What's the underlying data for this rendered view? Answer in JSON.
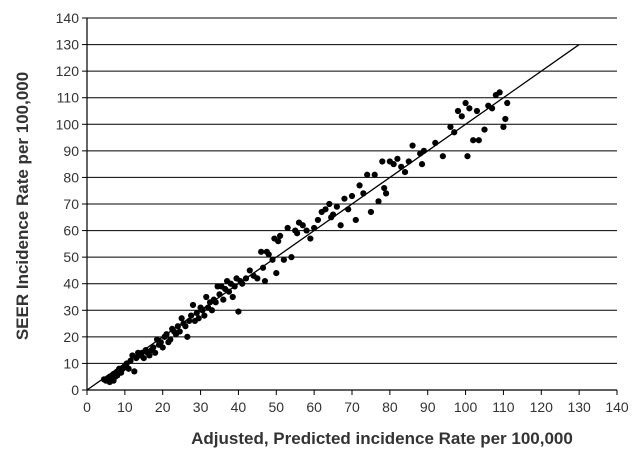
{
  "chart_data": {
    "type": "scatter",
    "title": "",
    "xlabel": "Adjusted, Predicted incidence Rate per 100,000",
    "ylabel": "SEER Incidence Rate per 100,000",
    "xlim": [
      0,
      140
    ],
    "ylim": [
      0,
      140
    ],
    "x_ticks": [
      "0",
      "10",
      "20",
      "30",
      "40",
      "50",
      "60",
      "70",
      "80",
      "90",
      "100",
      "110",
      "120",
      "130",
      "140"
    ],
    "y_ticks": [
      "0",
      "10",
      "20",
      "30",
      "40",
      "50",
      "60",
      "70",
      "80",
      "90",
      "100",
      "110",
      "120",
      "130",
      "140"
    ],
    "grid": "horizontal",
    "reference_line": {
      "x": [
        0,
        130
      ],
      "y": [
        0,
        130
      ]
    },
    "points": [
      [
        4.5,
        4
      ],
      [
        5,
        3.5
      ],
      [
        5.5,
        4.5
      ],
      [
        6,
        3
      ],
      [
        6,
        5
      ],
      [
        6.5,
        4
      ],
      [
        7,
        6
      ],
      [
        7,
        3.5
      ],
      [
        7.5,
        5
      ],
      [
        8,
        7
      ],
      [
        8,
        5.5
      ],
      [
        8.5,
        8
      ],
      [
        9,
        6.5
      ],
      [
        9.5,
        8
      ],
      [
        10,
        9
      ],
      [
        10.5,
        10
      ],
      [
        11,
        8
      ],
      [
        11.5,
        11
      ],
      [
        12,
        13
      ],
      [
        12.5,
        7
      ],
      [
        13,
        12
      ],
      [
        13.5,
        14
      ],
      [
        14,
        13
      ],
      [
        14.5,
        14
      ],
      [
        15,
        12
      ],
      [
        15.5,
        15
      ],
      [
        16,
        14
      ],
      [
        16.5,
        13
      ],
      [
        17,
        15
      ],
      [
        17.5,
        16
      ],
      [
        18,
        14
      ],
      [
        18.5,
        19
      ],
      [
        19,
        17
      ],
      [
        19.5,
        18
      ],
      [
        20,
        16
      ],
      [
        20.5,
        20
      ],
      [
        21,
        21
      ],
      [
        21.5,
        18
      ],
      [
        22,
        19
      ],
      [
        22.5,
        23
      ],
      [
        23,
        22
      ],
      [
        23.5,
        21
      ],
      [
        24,
        24
      ],
      [
        24.5,
        22
      ],
      [
        25,
        27
      ],
      [
        25.5,
        25
      ],
      [
        26,
        24
      ],
      [
        26.5,
        20
      ],
      [
        27,
        26
      ],
      [
        27.5,
        28
      ],
      [
        28,
        32
      ],
      [
        28.5,
        26
      ],
      [
        29,
        29
      ],
      [
        29.5,
        27
      ],
      [
        30,
        31
      ],
      [
        30.5,
        30
      ],
      [
        31,
        28
      ],
      [
        31.5,
        35
      ],
      [
        32,
        31
      ],
      [
        32.5,
        33
      ],
      [
        33,
        30
      ],
      [
        33.5,
        34
      ],
      [
        34,
        33
      ],
      [
        34.5,
        39
      ],
      [
        35,
        36
      ],
      [
        35.5,
        39
      ],
      [
        36,
        34
      ],
      [
        36.5,
        38
      ],
      [
        37,
        41
      ],
      [
        37.5,
        37
      ],
      [
        38,
        40
      ],
      [
        38.5,
        35
      ],
      [
        39,
        39
      ],
      [
        39.5,
        42
      ],
      [
        40,
        29.5
      ],
      [
        40.5,
        41
      ],
      [
        41,
        40
      ],
      [
        42,
        42
      ],
      [
        43,
        45
      ],
      [
        44,
        43
      ],
      [
        45,
        42
      ],
      [
        46,
        52
      ],
      [
        46.5,
        46
      ],
      [
        47,
        41
      ],
      [
        47.5,
        52
      ],
      [
        48,
        51
      ],
      [
        49,
        49
      ],
      [
        49.5,
        57
      ],
      [
        50,
        44
      ],
      [
        50.5,
        56
      ],
      [
        51,
        58
      ],
      [
        52,
        49
      ],
      [
        53,
        61
      ],
      [
        54,
        50
      ],
      [
        55,
        60
      ],
      [
        55.5,
        59
      ],
      [
        56,
        63
      ],
      [
        57,
        62
      ],
      [
        58,
        60
      ],
      [
        59,
        57
      ],
      [
        60,
        61
      ],
      [
        61,
        64
      ],
      [
        62,
        67
      ],
      [
        63,
        68
      ],
      [
        64,
        70
      ],
      [
        64.5,
        65
      ],
      [
        65,
        66
      ],
      [
        66,
        69
      ],
      [
        67,
        62
      ],
      [
        68,
        72
      ],
      [
        69,
        68
      ],
      [
        70,
        73
      ],
      [
        71,
        64
      ],
      [
        72,
        77
      ],
      [
        73,
        74
      ],
      [
        74,
        81
      ],
      [
        75,
        67
      ],
      [
        76,
        81
      ],
      [
        77,
        71
      ],
      [
        78,
        86
      ],
      [
        78.5,
        76
      ],
      [
        79,
        74
      ],
      [
        80,
        86
      ],
      [
        81,
        85
      ],
      [
        82,
        87
      ],
      [
        83,
        84
      ],
      [
        84,
        82
      ],
      [
        85,
        86
      ],
      [
        86,
        92
      ],
      [
        88,
        89
      ],
      [
        88.5,
        85
      ],
      [
        89,
        90
      ],
      [
        92,
        93
      ],
      [
        94,
        88
      ],
      [
        96,
        99
      ],
      [
        97,
        97
      ],
      [
        98,
        105
      ],
      [
        99,
        103
      ],
      [
        100,
        108
      ],
      [
        100.5,
        88
      ],
      [
        101,
        106
      ],
      [
        102,
        94
      ],
      [
        103,
        105
      ],
      [
        103.5,
        94
      ],
      [
        105,
        98
      ],
      [
        106,
        107
      ],
      [
        107,
        106
      ],
      [
        108,
        111
      ],
      [
        109,
        112
      ],
      [
        110,
        99
      ],
      [
        110.5,
        102
      ],
      [
        111,
        108
      ]
    ]
  }
}
